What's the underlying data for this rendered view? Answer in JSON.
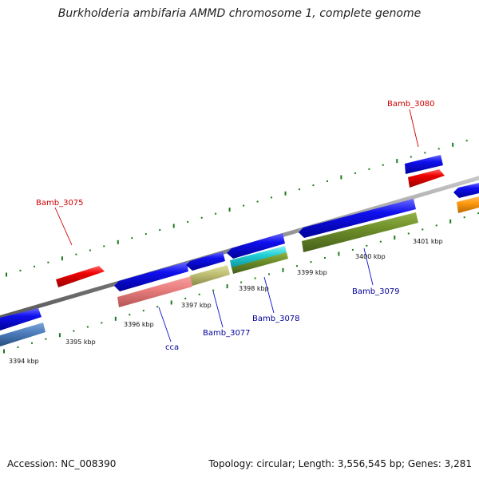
{
  "title": "Burkholderia ambifaria AMMD chromosome 1, complete genome",
  "footer": {
    "accession": "Accession: NC_008390",
    "topology": "Topology: circular; Length: 3,556,545 bp; Genes: 3,281"
  },
  "colors": {
    "forward_strand": "#0000ee",
    "reverse_strand_label": "#000099",
    "highlight_label": "#cc0000",
    "tick": "#1a7a1a",
    "backbone": "#888888"
  },
  "kbp_labels": [
    "3394 kbp",
    "3395 kbp",
    "3396 kbp",
    "3397 kbp",
    "3398 kbp",
    "3399 kbp",
    "3400 kbp",
    "3401 kbp"
  ],
  "gene_labels": [
    {
      "text": "Bamb_3080",
      "color": "#cc0000"
    },
    {
      "text": "Bamb_3075",
      "color": "#cc0000"
    },
    {
      "text": "cca",
      "color": "#000099"
    },
    {
      "text": "Bamb_3077",
      "color": "#000099"
    },
    {
      "text": "Bamb_3078",
      "color": "#000099"
    },
    {
      "text": "Bamb_3079",
      "color": "#000099"
    }
  ]
}
